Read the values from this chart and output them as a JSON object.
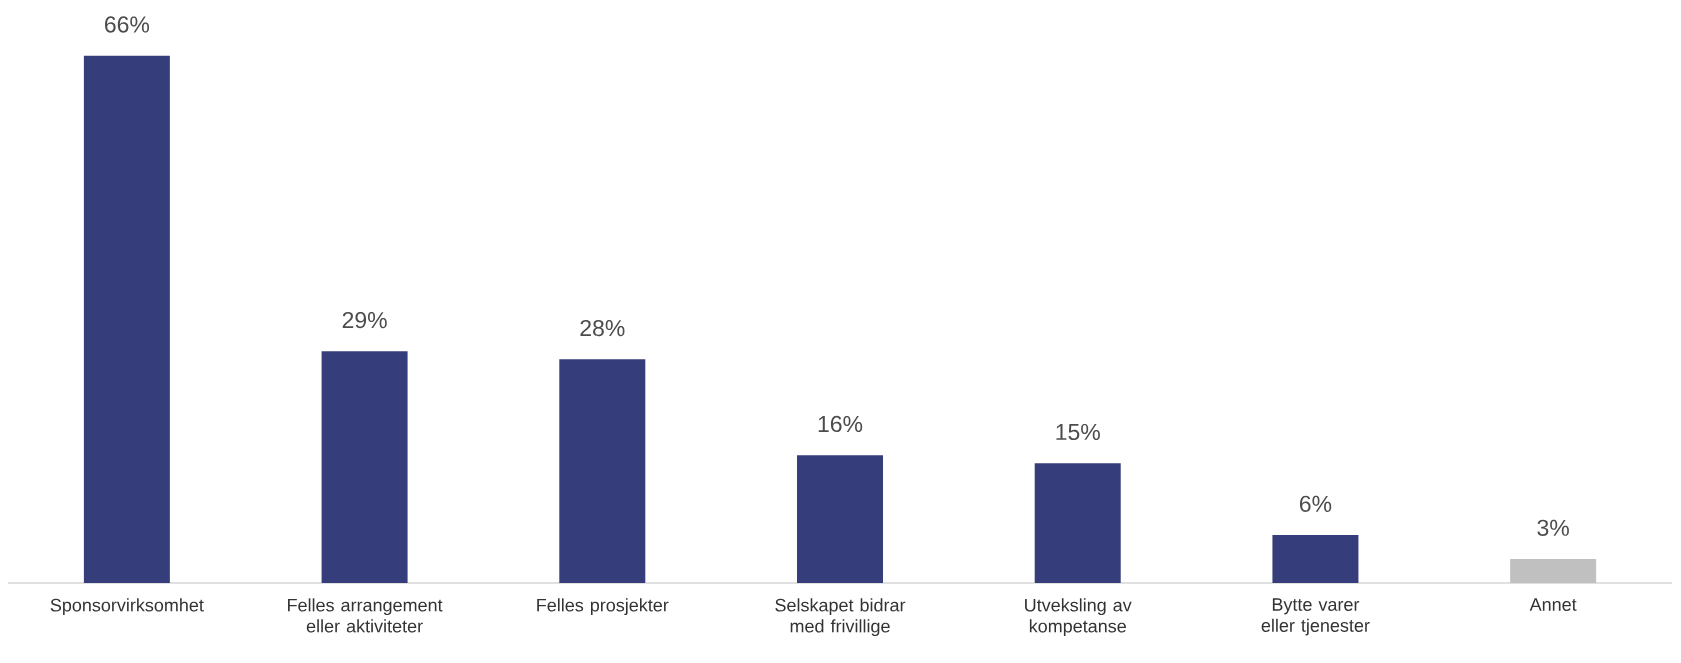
{
  "chart_data": {
    "type": "bar",
    "categories": [
      "Sponsorvirksomhet",
      "Felles arrangement eller aktiviteter",
      "Felles prosjekter",
      "Selskapet bidrar med frivillige",
      "Utveksling av kompetanse",
      "Bytte varer eller tjenester",
      "Annet"
    ],
    "values": [
      66,
      29,
      28,
      16,
      15,
      6,
      3
    ],
    "value_labels": [
      "66%",
      "29%",
      "28%",
      "16%",
      "15%",
      "6%",
      "3%"
    ],
    "colors": [
      "#353e7a",
      "#353e7a",
      "#353e7a",
      "#353e7a",
      "#353e7a",
      "#353e7a",
      "#c0c0c0"
    ]
  }
}
